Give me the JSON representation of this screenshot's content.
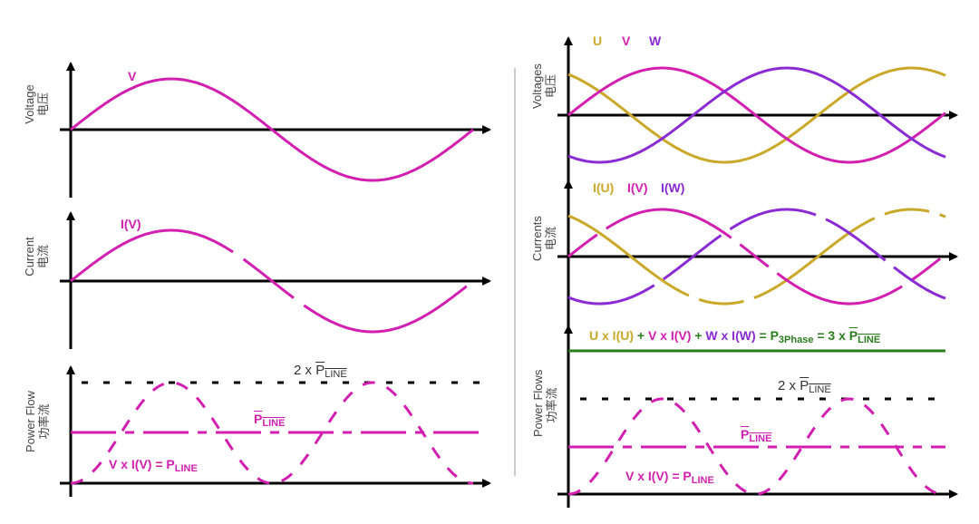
{
  "colors": {
    "u": "#c9a82a",
    "v": "#d21fb0",
    "w": "#8a2bd4",
    "total": "#2a7d1c",
    "axis": "#000000",
    "divider": "#999999"
  },
  "left": {
    "voltage": {
      "ylabel": "Voltage",
      "ylabel_cn": "电压",
      "curve_label": "V"
    },
    "current": {
      "ylabel": "Current",
      "ylabel_cn": "电流",
      "curve_label": "I(V)"
    },
    "power": {
      "ylabel": "Power Flow",
      "ylabel_cn": "功率流",
      "two_x": "2 x ",
      "p": "P",
      "line_sub": "LINE",
      "product": "V x I(V) = "
    }
  },
  "right": {
    "voltage": {
      "ylabel": "Voltages",
      "ylabel_cn": "电压",
      "labels": [
        "U",
        "V",
        "W"
      ]
    },
    "current": {
      "ylabel": "Currents",
      "ylabel_cn": "电流",
      "labels": [
        "I(U)",
        "I(V)",
        "I(W)"
      ]
    },
    "power": {
      "ylabel": "Power Flows",
      "ylabel_cn": "功率流",
      "two_x": "2 x ",
      "p": "P",
      "line_sub": "LINE",
      "product": "V x I(V) = ",
      "total": {
        "u": "U x I(U)",
        "plus1": " + ",
        "v": "V x I(V)",
        "plus2": " + ",
        "w": "W x I(W)",
        "eq": " = P",
        "sub": "3Phase",
        "eq2": " = 3 x "
      }
    }
  },
  "phases_deg": {
    "U": 120,
    "V": 0,
    "W": -120
  }
}
